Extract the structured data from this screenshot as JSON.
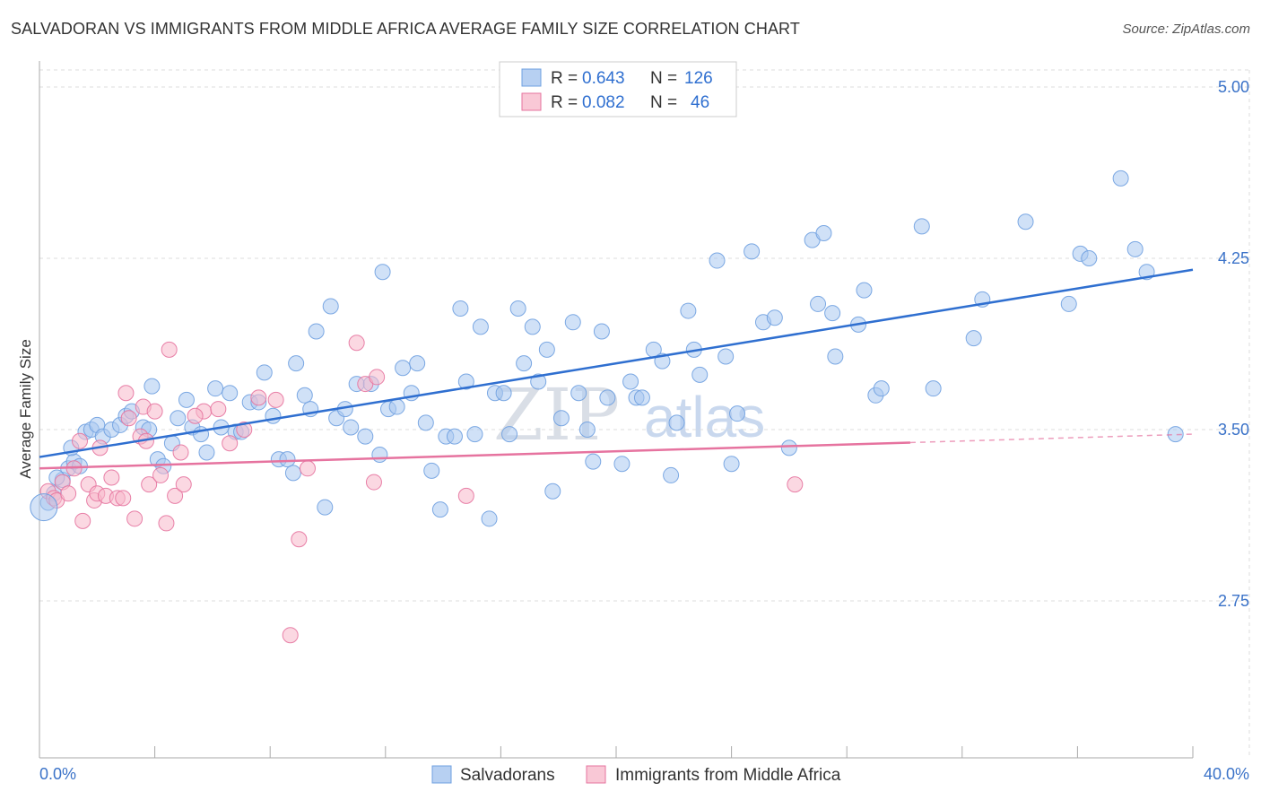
{
  "title": "SALVADORAN VS IMMIGRANTS FROM MIDDLE AFRICA AVERAGE FAMILY SIZE CORRELATION CHART",
  "source": "Source: ZipAtlas.com",
  "watermark": {
    "zip": "ZIP",
    "atlas": "atlas"
  },
  "legend": {
    "rows": [
      {
        "r_label": "R =",
        "r_value": "0.643",
        "n_label": "N =",
        "n_value": "126",
        "color": "#a9c8f0"
      },
      {
        "r_label": "R =",
        "r_value": "0.082",
        "n_label": "N =",
        "n_value": "46",
        "color": "#f7b8cb"
      }
    ]
  },
  "bottom_legend": [
    {
      "label": "Salvadorans",
      "color": "#a9c8f0"
    },
    {
      "label": "Immigrants from Middle Africa",
      "color": "#f7b8cb"
    }
  ],
  "chart_data": {
    "type": "scatter",
    "title": "SALVADORAN VS IMMIGRANTS FROM MIDDLE AFRICA AVERAGE FAMILY SIZE CORRELATION CHART",
    "xlabel": "",
    "ylabel": "Average Family Size",
    "xlim": [
      0,
      40
    ],
    "ylim": [
      2.0,
      5.0
    ],
    "x_tick_labels": [
      "0.0%",
      "40.0%"
    ],
    "y_ticks": [
      2.75,
      3.5,
      4.25,
      5.0
    ],
    "y_tick_labels": [
      "2.75",
      "3.50",
      "4.25",
      "5.00"
    ],
    "grid": true,
    "legend_placement": "top-center",
    "series": [
      {
        "name": "Salvadorans",
        "color": "#6fa0e0",
        "fill": "#a9c8f0",
        "trend": {
          "x0": 0,
          "y0": 3.38,
          "x1": 40,
          "y1": 4.2,
          "solid_to": 40
        },
        "points": [
          [
            0.3,
            3.18
          ],
          [
            0.5,
            3.22
          ],
          [
            0.8,
            3.28
          ],
          [
            1.0,
            3.33
          ],
          [
            1.2,
            3.36
          ],
          [
            1.4,
            3.34
          ],
          [
            1.6,
            3.49
          ],
          [
            1.8,
            3.5
          ],
          [
            2.0,
            3.52
          ],
          [
            2.2,
            3.47
          ],
          [
            2.5,
            3.5
          ],
          [
            2.8,
            3.52
          ],
          [
            3.0,
            3.56
          ],
          [
            3.2,
            3.58
          ],
          [
            3.6,
            3.51
          ],
          [
            3.9,
            3.69
          ],
          [
            4.1,
            3.37
          ],
          [
            4.3,
            3.34
          ],
          [
            4.6,
            3.44
          ],
          [
            4.8,
            3.55
          ],
          [
            5.1,
            3.63
          ],
          [
            5.3,
            3.51
          ],
          [
            5.6,
            3.48
          ],
          [
            5.8,
            3.4
          ],
          [
            6.1,
            3.68
          ],
          [
            6.3,
            3.51
          ],
          [
            6.6,
            3.66
          ],
          [
            6.8,
            3.49
          ],
          [
            7.0,
            3.49
          ],
          [
            7.3,
            3.62
          ],
          [
            7.6,
            3.62
          ],
          [
            7.8,
            3.75
          ],
          [
            8.1,
            3.56
          ],
          [
            8.3,
            3.37
          ],
          [
            8.6,
            3.37
          ],
          [
            8.8,
            3.31
          ],
          [
            8.9,
            3.79
          ],
          [
            9.2,
            3.65
          ],
          [
            9.4,
            3.59
          ],
          [
            9.6,
            3.93
          ],
          [
            9.9,
            3.16
          ],
          [
            10.1,
            4.04
          ],
          [
            10.3,
            3.55
          ],
          [
            10.6,
            3.59
          ],
          [
            10.8,
            3.51
          ],
          [
            11.0,
            3.7
          ],
          [
            11.3,
            3.47
          ],
          [
            11.5,
            3.7
          ],
          [
            11.8,
            3.39
          ],
          [
            11.9,
            4.19
          ],
          [
            12.1,
            3.59
          ],
          [
            12.4,
            3.6
          ],
          [
            12.6,
            3.77
          ],
          [
            12.9,
            3.66
          ],
          [
            13.1,
            3.79
          ],
          [
            13.4,
            3.53
          ],
          [
            13.6,
            3.32
          ],
          [
            13.9,
            3.15
          ],
          [
            14.1,
            3.47
          ],
          [
            14.4,
            3.47
          ],
          [
            14.6,
            4.03
          ],
          [
            14.8,
            3.71
          ],
          [
            15.1,
            3.48
          ],
          [
            15.3,
            3.95
          ],
          [
            15.6,
            3.11
          ],
          [
            15.8,
            3.66
          ],
          [
            16.1,
            3.66
          ],
          [
            16.3,
            3.48
          ],
          [
            16.6,
            4.03
          ],
          [
            16.8,
            3.79
          ],
          [
            17.1,
            3.95
          ],
          [
            17.3,
            3.71
          ],
          [
            17.6,
            3.85
          ],
          [
            17.8,
            3.23
          ],
          [
            18.1,
            3.55
          ],
          [
            18.5,
            3.97
          ],
          [
            18.7,
            3.66
          ],
          [
            19.0,
            3.5
          ],
          [
            19.2,
            3.36
          ],
          [
            19.5,
            3.93
          ],
          [
            19.7,
            3.64
          ],
          [
            20.2,
            3.35
          ],
          [
            20.5,
            3.71
          ],
          [
            20.7,
            3.64
          ],
          [
            20.9,
            3.64
          ],
          [
            21.3,
            3.85
          ],
          [
            21.6,
            3.8
          ],
          [
            21.9,
            3.3
          ],
          [
            22.1,
            3.53
          ],
          [
            22.5,
            4.02
          ],
          [
            22.7,
            3.85
          ],
          [
            22.9,
            3.74
          ],
          [
            23.5,
            4.24
          ],
          [
            23.8,
            3.82
          ],
          [
            24.0,
            3.35
          ],
          [
            24.2,
            3.57
          ],
          [
            24.7,
            4.28
          ],
          [
            25.1,
            3.97
          ],
          [
            25.5,
            3.99
          ],
          [
            26.0,
            3.42
          ],
          [
            26.8,
            4.33
          ],
          [
            27.0,
            4.05
          ],
          [
            27.2,
            4.36
          ],
          [
            27.5,
            4.01
          ],
          [
            27.6,
            3.82
          ],
          [
            28.4,
            3.96
          ],
          [
            28.6,
            4.11
          ],
          [
            29.0,
            3.65
          ],
          [
            29.2,
            3.68
          ],
          [
            30.6,
            4.39
          ],
          [
            31.0,
            3.68
          ],
          [
            32.4,
            3.9
          ],
          [
            32.7,
            4.07
          ],
          [
            34.2,
            4.41
          ],
          [
            35.7,
            4.05
          ],
          [
            36.1,
            4.27
          ],
          [
            36.4,
            4.25
          ],
          [
            37.5,
            4.6
          ],
          [
            38.0,
            4.29
          ],
          [
            38.4,
            4.19
          ],
          [
            39.4,
            3.48
          ],
          [
            0.6,
            3.29
          ],
          [
            1.1,
            3.42
          ],
          [
            3.8,
            3.5
          ]
        ]
      },
      {
        "name": "Immigrants from Middle Africa",
        "color": "#e6739f",
        "fill": "#f7b8cb",
        "trend": {
          "x0": 0,
          "y0": 3.33,
          "x1": 40,
          "y1": 3.48,
          "solid_to": 30.2
        },
        "points": [
          [
            0.3,
            3.23
          ],
          [
            0.5,
            3.2
          ],
          [
            0.6,
            3.19
          ],
          [
            0.8,
            3.27
          ],
          [
            1.0,
            3.22
          ],
          [
            1.2,
            3.33
          ],
          [
            1.4,
            3.45
          ],
          [
            1.5,
            3.1
          ],
          [
            1.7,
            3.26
          ],
          [
            1.9,
            3.19
          ],
          [
            2.0,
            3.22
          ],
          [
            2.1,
            3.42
          ],
          [
            2.3,
            3.21
          ],
          [
            2.5,
            3.29
          ],
          [
            2.7,
            3.2
          ],
          [
            2.9,
            3.2
          ],
          [
            3.0,
            3.66
          ],
          [
            3.1,
            3.55
          ],
          [
            3.3,
            3.11
          ],
          [
            3.5,
            3.47
          ],
          [
            3.6,
            3.6
          ],
          [
            3.7,
            3.45
          ],
          [
            3.8,
            3.26
          ],
          [
            4.0,
            3.58
          ],
          [
            4.2,
            3.3
          ],
          [
            4.4,
            3.09
          ],
          [
            4.5,
            3.85
          ],
          [
            4.7,
            3.21
          ],
          [
            4.9,
            3.4
          ],
          [
            5.0,
            3.26
          ],
          [
            5.7,
            3.58
          ],
          [
            6.2,
            3.59
          ],
          [
            6.6,
            3.44
          ],
          [
            7.1,
            3.5
          ],
          [
            7.6,
            3.64
          ],
          [
            8.2,
            3.63
          ],
          [
            8.7,
            2.6
          ],
          [
            9.0,
            3.02
          ],
          [
            9.3,
            3.33
          ],
          [
            11.0,
            3.88
          ],
          [
            11.3,
            3.7
          ],
          [
            11.6,
            3.27
          ],
          [
            11.7,
            3.73
          ],
          [
            14.8,
            3.21
          ],
          [
            26.2,
            3.26
          ],
          [
            5.4,
            3.56
          ]
        ]
      }
    ]
  }
}
